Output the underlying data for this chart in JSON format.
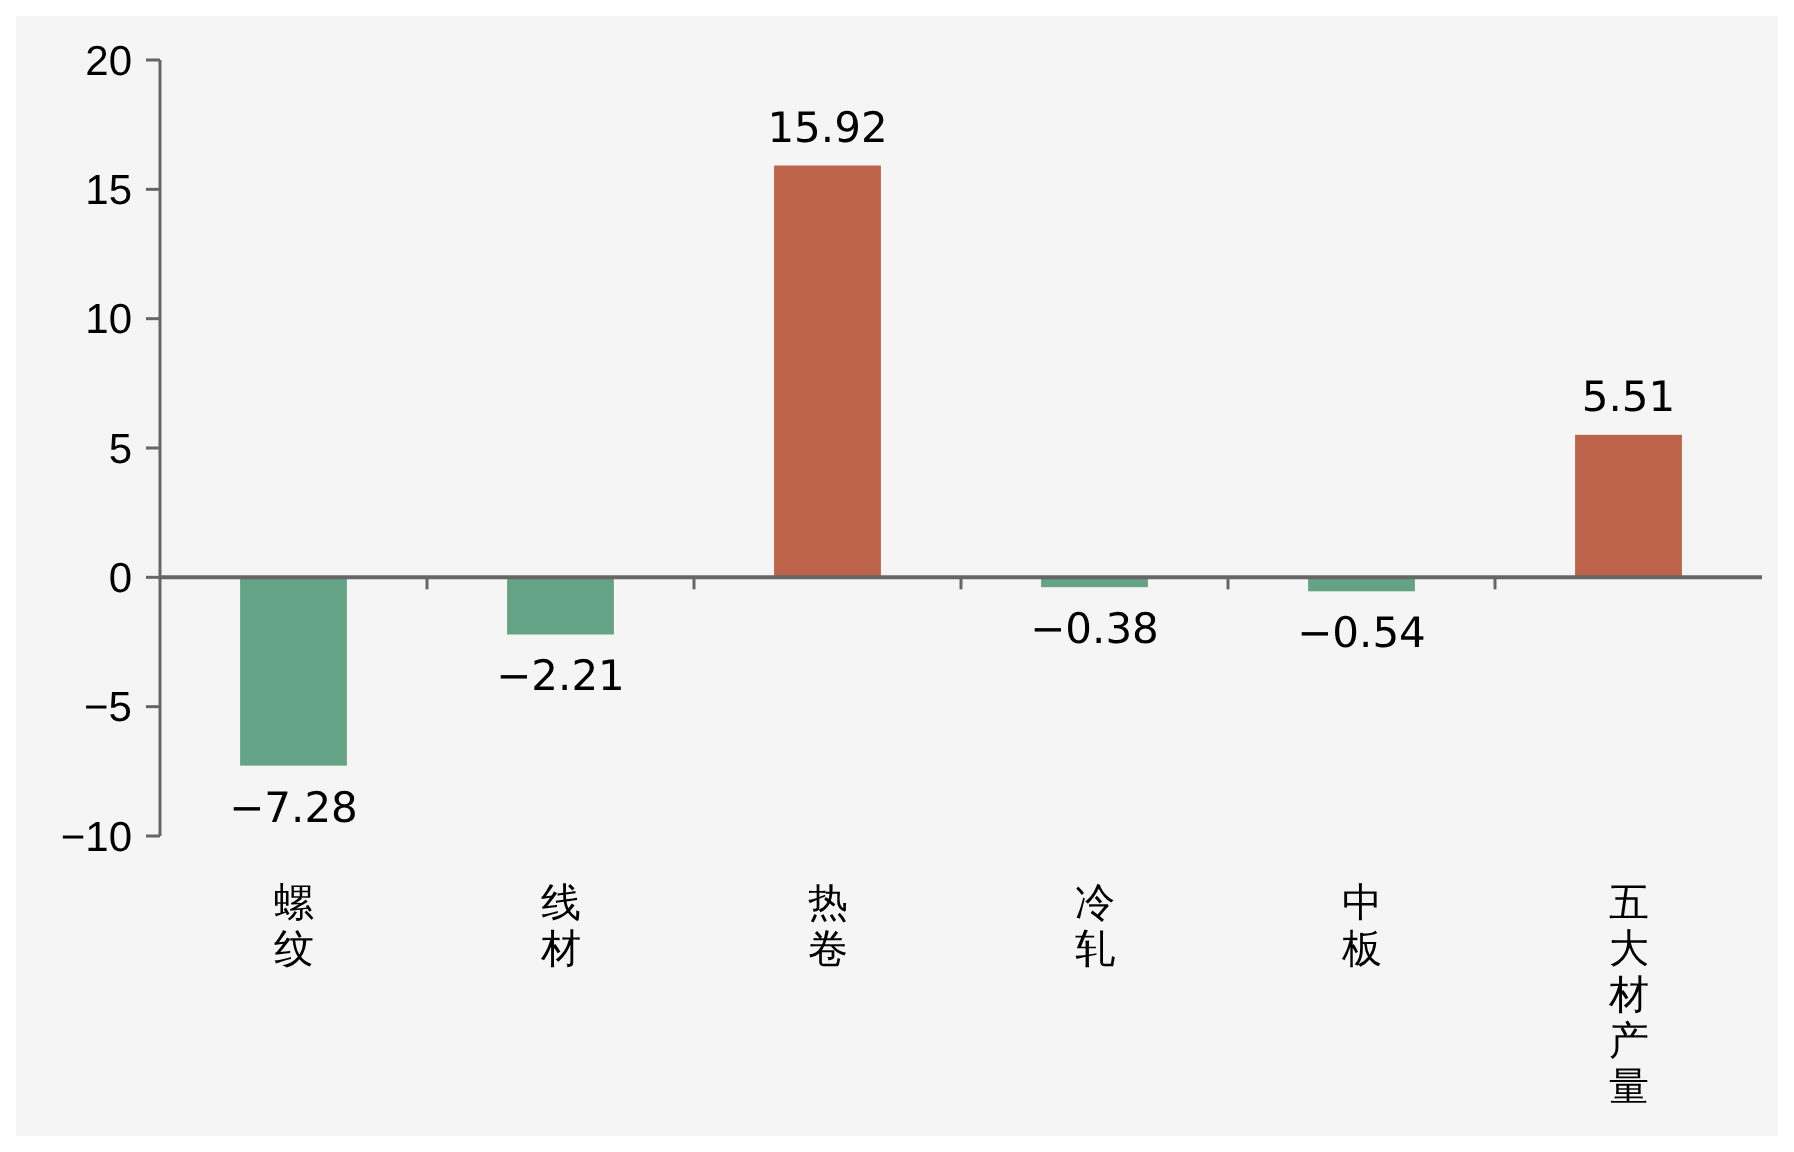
{
  "chart_data": {
    "type": "bar",
    "categories": [
      "螺纹",
      "线材",
      "热卷",
      "冷轧",
      "中板",
      "五大材产量"
    ],
    "values": [
      -7.28,
      -2.21,
      15.92,
      -0.38,
      -0.54,
      5.51
    ],
    "colors": [
      "#64a386",
      "#64a386",
      "#bc634a",
      "#64a386",
      "#64a386",
      "#bc634a"
    ],
    "ylim": [
      -10,
      20
    ],
    "yticks": [
      -10,
      -5,
      0,
      5,
      10,
      15,
      20
    ],
    "data_labels": true
  }
}
